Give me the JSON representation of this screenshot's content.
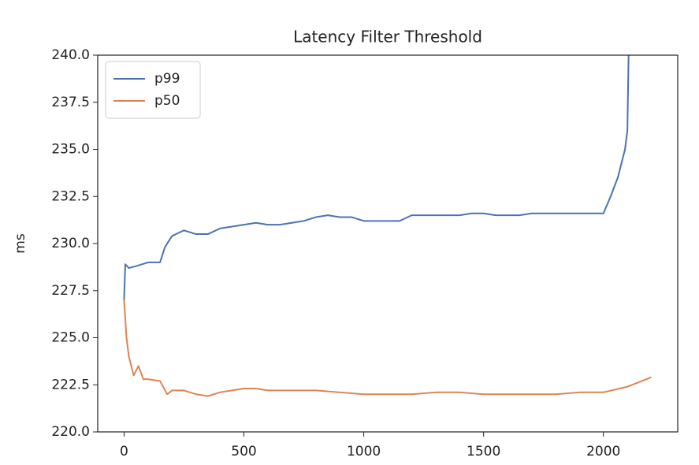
{
  "chart_data": {
    "type": "line",
    "title": "Latency Filter Threshold",
    "y_label": "ms",
    "xlim": [
      -110,
      2310
    ],
    "xticks": [
      0,
      500,
      1000,
      1500,
      2000
    ],
    "ylim": [
      220,
      240
    ],
    "yticks": [
      {
        "value": 220,
        "label": "220.0"
      },
      {
        "value": 222.5,
        "label": "222.5"
      },
      {
        "value": 225,
        "label": "225.0"
      },
      {
        "value": 227.5,
        "label": "227.5"
      },
      {
        "value": 230,
        "label": "230.0"
      },
      {
        "value": 232.5,
        "label": "232.5"
      },
      {
        "value": 235,
        "label": "235.0"
      },
      {
        "value": 237.5,
        "label": "237.5"
      },
      {
        "value": 240,
        "label": "240.0"
      }
    ],
    "legend": "upper left",
    "grid": false,
    "series": [
      {
        "name": "p99",
        "color": "#4c72b0",
        "x": [
          0,
          5,
          20,
          50,
          100,
          150,
          170,
          200,
          250,
          300,
          350,
          400,
          450,
          500,
          550,
          600,
          650,
          700,
          750,
          800,
          850,
          900,
          950,
          1000,
          1050,
          1100,
          1150,
          1200,
          1250,
          1300,
          1350,
          1400,
          1450,
          1500,
          1550,
          1600,
          1650,
          1700,
          1750,
          1800,
          1850,
          1900,
          1950,
          2000,
          2030,
          2060,
          2090,
          2100,
          2105
        ],
        "values": [
          227.0,
          228.9,
          228.7,
          228.8,
          229.0,
          229.0,
          229.8,
          230.4,
          230.7,
          230.5,
          230.5,
          230.8,
          230.9,
          231.0,
          231.1,
          231.0,
          231.0,
          231.1,
          231.2,
          231.4,
          231.5,
          231.4,
          231.4,
          231.2,
          231.2,
          231.2,
          231.2,
          231.5,
          231.5,
          231.5,
          231.5,
          231.5,
          231.6,
          231.6,
          231.5,
          231.5,
          231.5,
          231.6,
          231.6,
          231.6,
          231.6,
          231.6,
          231.6,
          231.6,
          232.5,
          233.5,
          235.0,
          236.0,
          240.0
        ]
      },
      {
        "name": "p50",
        "color": "#dd8452",
        "x": [
          0,
          10,
          20,
          30,
          40,
          60,
          80,
          100,
          150,
          180,
          200,
          250,
          300,
          350,
          400,
          450,
          500,
          550,
          600,
          700,
          800,
          900,
          1000,
          1100,
          1200,
          1300,
          1400,
          1500,
          1600,
          1700,
          1800,
          1900,
          2000,
          2100,
          2200
        ],
        "values": [
          227.0,
          225.0,
          224.0,
          223.5,
          223.0,
          223.5,
          222.8,
          222.8,
          222.7,
          222.0,
          222.2,
          222.2,
          222.0,
          221.9,
          222.1,
          222.2,
          222.3,
          222.3,
          222.2,
          222.2,
          222.2,
          222.1,
          222.0,
          222.0,
          222.0,
          222.1,
          222.1,
          222.0,
          222.0,
          222.0,
          222.0,
          222.1,
          222.1,
          222.4,
          222.9
        ]
      }
    ]
  }
}
